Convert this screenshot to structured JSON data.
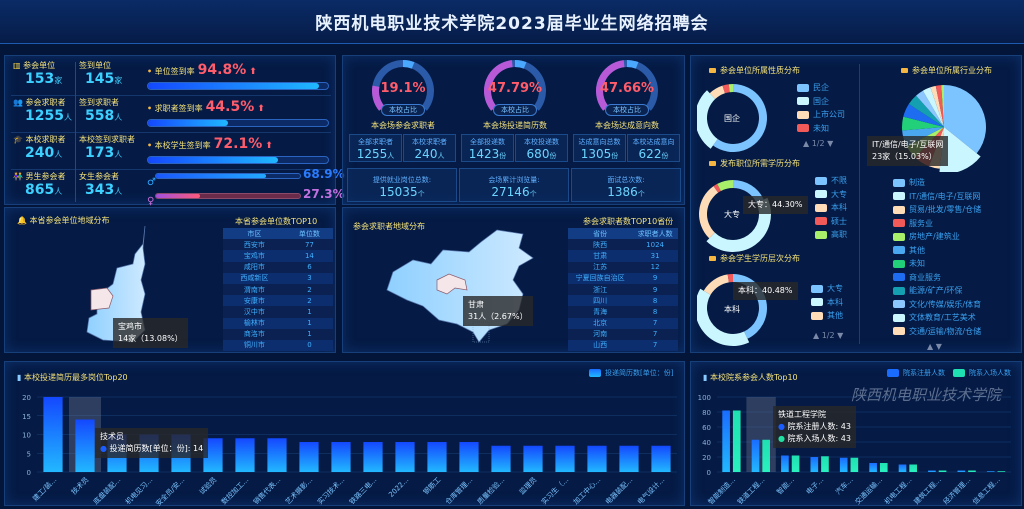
{
  "header": {
    "title": "陕西机电职业技术学院2023届毕业生网络招聘会"
  },
  "summary": {
    "rows": [
      {
        "icon": "building-icon",
        "label_a": "参会单位",
        "value_a": "153",
        "unit_a": "家",
        "label_b": "签到单位",
        "value_b": "145",
        "unit_b": "家",
        "rate_label": "单位签到率",
        "rate": "94.8%",
        "rate_value": 94.8
      },
      {
        "icon": "users-icon",
        "label_a": "参会求职者",
        "value_a": "1255",
        "unit_a": "人",
        "label_b": "签到求职者",
        "value_b": "558",
        "unit_b": "人",
        "rate_label": "求职者签到率",
        "rate": "44.5%",
        "rate_value": 44.5
      },
      {
        "icon": "graduate-icon",
        "label_a": "本校求职者",
        "value_a": "240",
        "unit_a": "人",
        "label_b": "本校签到求职者",
        "value_b": "173",
        "unit_b": "人",
        "rate_label": "本校学生签到率",
        "rate": "72.1%",
        "rate_value": 72.1
      },
      {
        "icon": "gender-icon",
        "label_a": "男生参会者",
        "value_a": "865",
        "unit_a": "人",
        "label_b": "女生参会者",
        "value_b": "343",
        "unit_b": "人"
      }
    ],
    "male_rate": "68.9%",
    "male_value": 68.9,
    "female_rate": "27.3%",
    "female_value": 27.3,
    "colors": {
      "male": "#2aa8ff",
      "female": "#c86bd8"
    }
  },
  "gauges": [
    {
      "percent": "19.1%",
      "value": 19.1,
      "badge": "本校占比",
      "title": "本会场参会求职者",
      "stats": [
        {
          "label": "全部求职者",
          "value": "1255",
          "unit": "人"
        },
        {
          "label": "本校求职者",
          "value": "240",
          "unit": "人"
        }
      ]
    },
    {
      "percent": "47.79%",
      "value": 47.79,
      "badge": "本校占比",
      "title": "本会场投递简历数",
      "stats": [
        {
          "label": "全部投递数",
          "value": "1423",
          "unit": "份"
        },
        {
          "label": "本校投递数",
          "value": "680",
          "unit": "份"
        }
      ]
    },
    {
      "percent": "47.66%",
      "value": 47.66,
      "badge": "本校占比",
      "title": "本会场达成意向数",
      "stats": [
        {
          "label": "达成意向总数",
          "value": "1305",
          "unit": "份"
        },
        {
          "label": "本校达成意向",
          "value": "622",
          "unit": "份"
        }
      ]
    }
  ],
  "totals": [
    {
      "label": "提供就业岗位总数:",
      "value": "15035",
      "unit": "个"
    },
    {
      "label": "会场累计浏览量:",
      "value": "27146",
      "unit": "个"
    },
    {
      "label": "面试总次数:",
      "value": "1386",
      "unit": "个"
    }
  ],
  "province_map": {
    "title": "本省参会单位地域分布",
    "tooltip_name": "宝鸡市",
    "tooltip_value": "14家（13.08%）",
    "highlight": "宝鸡市",
    "table_title": "本省参会单位数TOP10",
    "columns": [
      "市区",
      "单位数"
    ],
    "rows": [
      [
        "西安市",
        "77"
      ],
      [
        "宝鸡市",
        "14"
      ],
      [
        "咸阳市",
        "6"
      ],
      [
        "西咸新区",
        "3"
      ],
      [
        "渭南市",
        "2"
      ],
      [
        "安康市",
        "2"
      ],
      [
        "汉中市",
        "1"
      ],
      [
        "榆林市",
        "1"
      ],
      [
        "商洛市",
        "1"
      ],
      [
        "铜川市",
        "0"
      ]
    ]
  },
  "china_map": {
    "title": "参会求职者地域分布",
    "tooltip_name": "甘肃",
    "tooltip_value": "31人（2.67%）",
    "table_title": "参会求职者数TOP10省份",
    "columns": [
      "省份",
      "求职者人数"
    ],
    "rows": [
      [
        "陕西",
        "1024"
      ],
      [
        "甘肃",
        "31"
      ],
      [
        "江苏",
        "12"
      ],
      [
        "宁夏回族自治区",
        "9"
      ],
      [
        "浙江",
        "9"
      ],
      [
        "四川",
        "8"
      ],
      [
        "青海",
        "8"
      ],
      [
        "北京",
        "7"
      ],
      [
        "河南",
        "7"
      ],
      [
        "山西",
        "7"
      ]
    ]
  },
  "nature": {
    "title": "参会单位所属性质分布",
    "center": "国企",
    "legend": [
      "民企",
      "国企",
      "上市公司",
      "未知"
    ],
    "values": [
      60,
      28,
      7,
      3,
      2
    ],
    "colors": [
      "#7cc4ff",
      "#c9f6ff",
      "#ffdcb8",
      "#f25a5a",
      "#a8f06a"
    ],
    "pager": "1/2"
  },
  "education": {
    "title": "发布职位所需学历分布",
    "center": "大专",
    "tooltip": "大专：44.30%",
    "legend": [
      "不限",
      "大专",
      "本科",
      "硕士",
      "高职"
    ],
    "values": [
      18,
      44.3,
      28,
      2,
      7.7
    ],
    "colors": [
      "#7cc4ff",
      "#c9f6ff",
      "#ffdcb8",
      "#f25a5a",
      "#a8f06a"
    ]
  },
  "student_edu": {
    "title": "参会学生学历层次分布",
    "center": "本科",
    "tooltip": "本科：40.48%",
    "legend": [
      "大专",
      "本科",
      "其他"
    ],
    "values": [
      43,
      40.48,
      14,
      2.52
    ],
    "colors": [
      "#7cc4ff",
      "#c9f6ff",
      "#ffdcb8",
      "#f25a5a"
    ],
    "pager": "1/2"
  },
  "industry": {
    "title": "参会单位所属行业分布",
    "tooltip_name": "IT/通信/电子/互联网",
    "tooltip_value": "23家（15.03%）",
    "legend": [
      "制造",
      "IT/通信/电子/互联网",
      "贸易/批发/零售/仓储",
      "服务业",
      "房地产/建筑业",
      "其他",
      "未知",
      "商业服务",
      "能源/矿产/环保",
      "文化/传媒/娱乐/体育",
      "文体教育/工艺美术",
      "交通/运输/物流/仓储"
    ],
    "values": [
      34,
      15.03,
      4,
      6,
      5,
      6,
      5,
      5,
      4,
      3,
      3,
      2,
      2,
      1
    ],
    "colors": [
      "#7cc4ff",
      "#c9f6ff",
      "#ffdcb8",
      "#f25a5a",
      "#a8f06a",
      "#4aa8f0",
      "#22d07a",
      "#1e6cf0",
      "#14a0b0",
      "#8cc8ff",
      "#c9f6ff",
      "#ffdcb8",
      "#f25a5a",
      "#a8f06a"
    ]
  },
  "chart_data": [
    {
      "type": "bar",
      "title": "本校投递简历最多岗位Top20",
      "legend": "投递简历数[单位：份]",
      "legend_position": "top-right",
      "ylim": [
        0,
        20
      ],
      "yticks": [
        0,
        5,
        10,
        15,
        20
      ],
      "grid": true,
      "categories": [
        "建工/装…",
        "技术员",
        "底盘装配…",
        "机电见习…",
        "安全员/安…",
        "试验员",
        "数控加工…",
        "销售代表…",
        "艺术摄影…",
        "实习技术…",
        "铁路三电…",
        "2022…",
        "钢筋工",
        "仓库管理…",
        "质量检验…",
        "监理员",
        "实习生（…",
        "加工中心…",
        "电器装配…",
        "电气设计…"
      ],
      "values": [
        20,
        14,
        10,
        10,
        10,
        9,
        9,
        9,
        8,
        8,
        8,
        8,
        8,
        8,
        7,
        7,
        7,
        7,
        7,
        7
      ],
      "tooltip": {
        "title": "技术员",
        "text": "投递简历数[单位：份]: 14"
      }
    },
    {
      "type": "bar",
      "title": "本校院系参会人数Top10",
      "legend_position": "top-right",
      "ylim": [
        0,
        100
      ],
      "yticks": [
        0,
        20,
        40,
        60,
        80,
        100
      ],
      "grid": true,
      "categories": [
        "智能制造…",
        "铁道工程…",
        "智能…",
        "电子…",
        "汽车…",
        "交通运输…",
        "机电工程…",
        "建筑工程…",
        "经济管理…",
        "信息工程…"
      ],
      "series": [
        {
          "name": "院系注册人数",
          "values": [
            82,
            43,
            22,
            20,
            19,
            12,
            10,
            2,
            2,
            1
          ],
          "color": "#1a6cff"
        },
        {
          "name": "院系入场人数",
          "values": [
            82,
            43,
            22,
            21,
            19,
            12,
            10,
            2,
            2,
            1
          ],
          "color": "#1fe0b0"
        }
      ],
      "tooltip": {
        "title": "铁道工程学院",
        "lines": [
          "院系注册人数: 43",
          "院系入场人数: 43"
        ]
      }
    }
  ],
  "watermark": "陕西机电职业技术学院"
}
